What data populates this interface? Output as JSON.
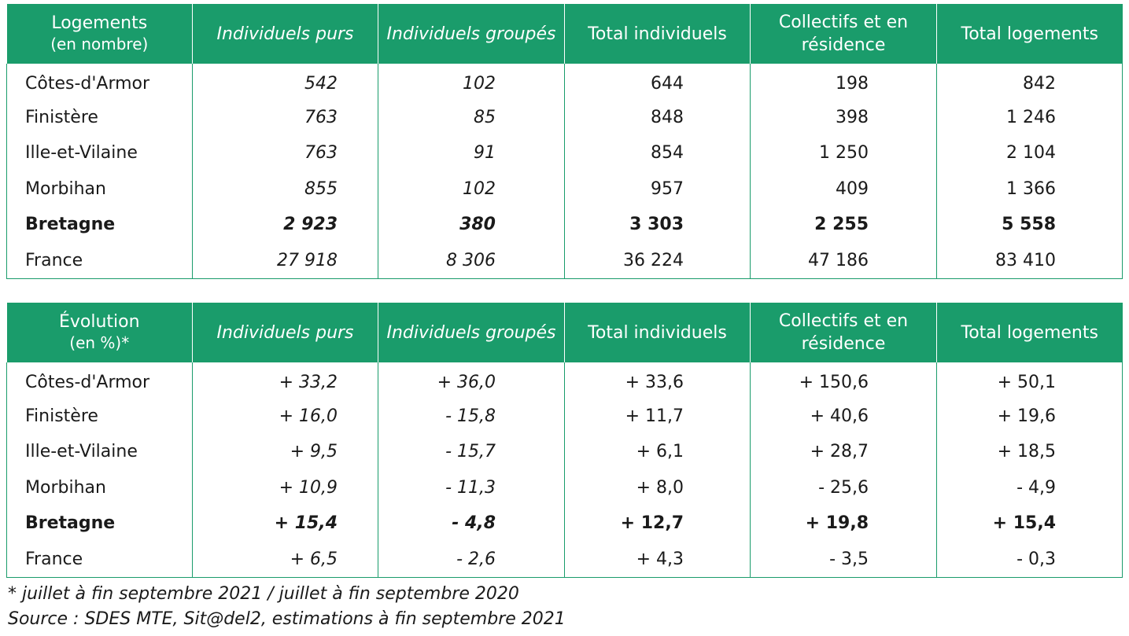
{
  "headers": {
    "col1": "Individuels purs",
    "col2": "Individuels groupés",
    "col3": "Total individuels",
    "col4": "Collectifs et en résidence",
    "col5": "Total logements"
  },
  "table1": {
    "title": "Logements",
    "subtitle": "(en nombre)",
    "rows": [
      {
        "name": "Côtes-d'Armor",
        "v": [
          "542",
          "102",
          "644",
          "198",
          "842"
        ]
      },
      {
        "name": "Finistère",
        "v": [
          "763",
          "85",
          "848",
          "398",
          "1 246"
        ]
      },
      {
        "name": "Ille-et-Vilaine",
        "v": [
          "763",
          "91",
          "854",
          "1 250",
          "2 104"
        ]
      },
      {
        "name": "Morbihan",
        "v": [
          "855",
          "102",
          "957",
          "409",
          "1 366"
        ]
      },
      {
        "name": "Bretagne",
        "v": [
          "2 923",
          "380",
          "3 303",
          "2 255",
          "5 558"
        ]
      },
      {
        "name": "France",
        "v": [
          "27 918",
          "8 306",
          "36 224",
          "47 186",
          "83 410"
        ]
      }
    ]
  },
  "table2": {
    "title": "Évolution",
    "subtitle": "(en %)*",
    "rows": [
      {
        "name": "Côtes-d'Armor",
        "v": [
          "+ 33,2",
          "+ 36,0",
          "+ 33,6",
          "+ 150,6",
          "+ 50,1"
        ]
      },
      {
        "name": "Finistère",
        "v": [
          "+ 16,0",
          "- 15,8",
          "+ 11,7",
          "+ 40,6",
          "+ 19,6"
        ]
      },
      {
        "name": "Ille-et-Vilaine",
        "v": [
          "+ 9,5",
          "- 15,7",
          "+ 6,1",
          "+ 28,7",
          "+ 18,5"
        ]
      },
      {
        "name": "Morbihan",
        "v": [
          "+ 10,9",
          "- 11,3",
          "+ 8,0",
          "- 25,6",
          "- 4,9"
        ]
      },
      {
        "name": "Bretagne",
        "v": [
          "+ 15,4",
          "- 4,8",
          "+ 12,7",
          "+ 19,8",
          "+ 15,4"
        ]
      },
      {
        "name": "France",
        "v": [
          "+ 6,5",
          "- 2,6",
          "+ 4,3",
          "- 3,5",
          "- 0,3"
        ]
      }
    ]
  },
  "notes": {
    "footnote": "* juillet à fin septembre 2021 / juillet à fin septembre 2020",
    "source": "Source : SDES MTE, Sit@del2, estimations à fin septembre 2021"
  },
  "colors": {
    "header_bg": "#1a9c6b",
    "header_text": "#ffffff",
    "border": "#1a9c6b"
  }
}
